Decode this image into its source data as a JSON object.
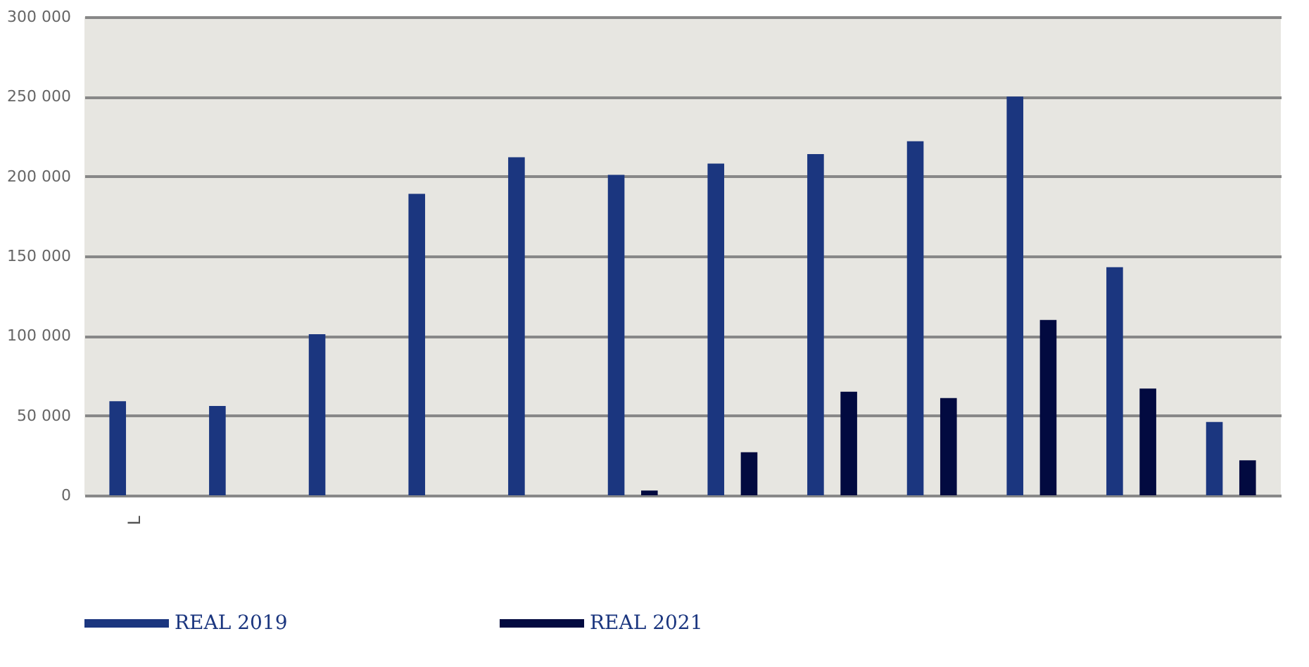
{
  "chart_data": {
    "type": "bar",
    "categories": [
      "L",
      null,
      null,
      null,
      null,
      null,
      null,
      null,
      null,
      null,
      null,
      null
    ],
    "series": [
      {
        "name": "REAL 2019",
        "color": "#1b367f",
        "values": [
          59000,
          56000,
          101000,
          189000,
          212000,
          201000,
          208000,
          214000,
          222000,
          250000,
          143000,
          46000
        ]
      },
      {
        "name": "REAL 2021",
        "color": "#020a40",
        "values": [
          null,
          null,
          null,
          null,
          null,
          3000,
          27000,
          65000,
          61000,
          110000,
          67000,
          22000
        ]
      }
    ],
    "ylim": [
      0,
      300000
    ],
    "yticks": [
      {
        "value": 0,
        "label": "0"
      },
      {
        "value": 50000,
        "label": "50 000"
      },
      {
        "value": 100000,
        "label": "100 000"
      },
      {
        "value": 150000,
        "label": "150 000"
      },
      {
        "value": 200000,
        "label": "200 000"
      },
      {
        "value": 250000,
        "label": "250 000"
      },
      {
        "value": 300000,
        "label": "300 000"
      }
    ],
    "grid": "y",
    "legend": "bottom"
  }
}
